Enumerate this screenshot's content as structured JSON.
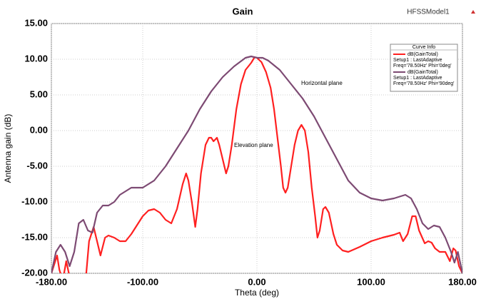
{
  "chart_data": {
    "type": "line",
    "title": "Gain",
    "model": "HFSSModel1",
    "x_label": "Theta (deg)",
    "y_label": "Antenna gain (dB)",
    "xlim": [
      -180,
      180
    ],
    "ylim": [
      -20,
      15
    ],
    "xticks": [
      {
        "value": -180,
        "label": "-180.00"
      },
      {
        "value": -100,
        "label": "-100.00"
      },
      {
        "value": 0,
        "label": "0.00"
      },
      {
        "value": 100,
        "label": "100.00"
      },
      {
        "value": 180,
        "label": "180.00"
      }
    ],
    "yticks": [
      {
        "value": -20,
        "label": "-20.00"
      },
      {
        "value": -15,
        "label": "-15.00"
      },
      {
        "value": -10,
        "label": "-10.00"
      },
      {
        "value": -5,
        "label": "-5.00"
      },
      {
        "value": 0,
        "label": "0.00"
      },
      {
        "value": 5,
        "label": "5.00"
      },
      {
        "value": 10,
        "label": "10.00"
      },
      {
        "value": 15,
        "label": "15.00"
      }
    ],
    "grid": true,
    "legend_title": "Curve Info",
    "legend_position": "upper right",
    "annotations": [
      "Horizontal plane",
      "Elevation plane"
    ],
    "series": [
      {
        "name": "dB(GainTotal)",
        "setup": "Setup1 : LastAdaptive",
        "params": "Freq='78.50Hz' Phi='0deg'",
        "color": "#ff2020",
        "x": [
          -180,
          -177,
          -175,
          -173,
          -170,
          -167,
          -164,
          -160,
          -150,
          -147,
          -143,
          -140,
          -137,
          -133,
          -130,
          -125,
          -120,
          -115,
          -110,
          -100,
          -95,
          -90,
          -85,
          -80,
          -75,
          -70,
          -65,
          -62,
          -60,
          -57,
          -54,
          -52,
          -49,
          -45,
          -42,
          -40,
          -38,
          -35,
          -33,
          -30,
          -27,
          -25,
          -22,
          -18,
          -14,
          -10,
          -5,
          -2,
          0,
          4,
          8,
          12,
          15,
          18,
          21,
          23,
          25,
          27,
          30,
          33,
          36,
          39,
          42,
          45,
          48,
          51,
          53,
          55,
          58,
          60,
          63,
          67,
          70,
          75,
          80,
          90,
          100,
          110,
          120,
          125,
          128,
          132,
          136,
          139,
          142,
          147,
          150,
          153,
          156,
          160,
          165,
          169,
          172,
          174,
          177,
          180
        ],
        "values": [
          -20,
          -18.5,
          -17.5,
          -19.5,
          -21,
          -18.3,
          -20.5,
          -21,
          -21,
          -15.5,
          -13.5,
          -15.5,
          -17.5,
          -15,
          -14.7,
          -15,
          -15.5,
          -15.5,
          -14.5,
          -12,
          -11.2,
          -11,
          -11.5,
          -12.5,
          -13,
          -11,
          -7.5,
          -6,
          -7,
          -10,
          -13.5,
          -11,
          -6,
          -2,
          -1,
          -1,
          -1.5,
          -1,
          -2,
          -4,
          -6,
          -5,
          -2,
          3,
          6.5,
          8.5,
          9.5,
          10.3,
          10.2,
          9.6,
          8.2,
          6,
          3,
          -1,
          -5,
          -8,
          -8.7,
          -8,
          -5,
          -2,
          0,
          0.8,
          0,
          -3,
          -8,
          -12,
          -15,
          -14,
          -11,
          -10.7,
          -11.5,
          -14.5,
          -16,
          -16.8,
          -17,
          -16.3,
          -15.5,
          -15,
          -14.6,
          -14.3,
          -15.5,
          -14.5,
          -12,
          -12,
          -14,
          -15.8,
          -15.5,
          -15.7,
          -16.5,
          -17,
          -17,
          -18.3,
          -16.5,
          -16.8,
          -19,
          -20
        ]
      },
      {
        "name": "dB(GainTotal)",
        "setup": "Setup1 : LastAdaptive",
        "params": "Freq='78.50Hz' Phi='90deg'",
        "color": "#7d4a73",
        "x": [
          -180,
          -176,
          -172,
          -168,
          -164,
          -160,
          -156,
          -152,
          -148,
          -144,
          -140,
          -135,
          -130,
          -125,
          -120,
          -110,
          -100,
          -90,
          -80,
          -70,
          -60,
          -50,
          -40,
          -30,
          -20,
          -10,
          -5,
          0,
          5,
          10,
          20,
          30,
          40,
          50,
          60,
          70,
          80,
          90,
          100,
          110,
          120,
          130,
          135,
          140,
          145,
          150,
          155,
          160,
          165,
          170,
          173,
          176,
          180
        ],
        "values": [
          -20,
          -17,
          -16,
          -17,
          -19,
          -17,
          -13,
          -12.5,
          -14,
          -14.3,
          -11.5,
          -10.5,
          -10.5,
          -10,
          -9,
          -8,
          -8,
          -7,
          -5,
          -2.5,
          0,
          3,
          5.5,
          7.5,
          9,
          10.2,
          10.4,
          10.2,
          10.2,
          9.8,
          8.5,
          6.5,
          4.5,
          2,
          -1,
          -4,
          -7,
          -8.7,
          -9.5,
          -9.8,
          -9.5,
          -9,
          -9.5,
          -11,
          -13,
          -13.8,
          -13.3,
          -13.5,
          -15,
          -17,
          -18.5,
          -17,
          -20
        ]
      }
    ]
  }
}
